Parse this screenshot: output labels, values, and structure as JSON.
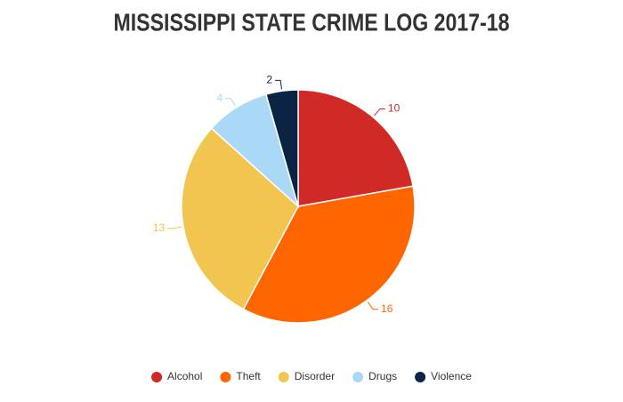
{
  "chart_data": {
    "type": "pie",
    "title": "MISSISSIPPI STATE CRIME LOG 2017-18",
    "categories": [
      "Alcohol",
      "Theft",
      "Disorder",
      "Drugs",
      "Violence"
    ],
    "values": [
      10,
      16,
      13,
      4,
      2
    ],
    "colors": [
      "#d12a26",
      "#ff6600",
      "#f2c550",
      "#aad8f7",
      "#0b2345"
    ],
    "legend": "bottom"
  }
}
